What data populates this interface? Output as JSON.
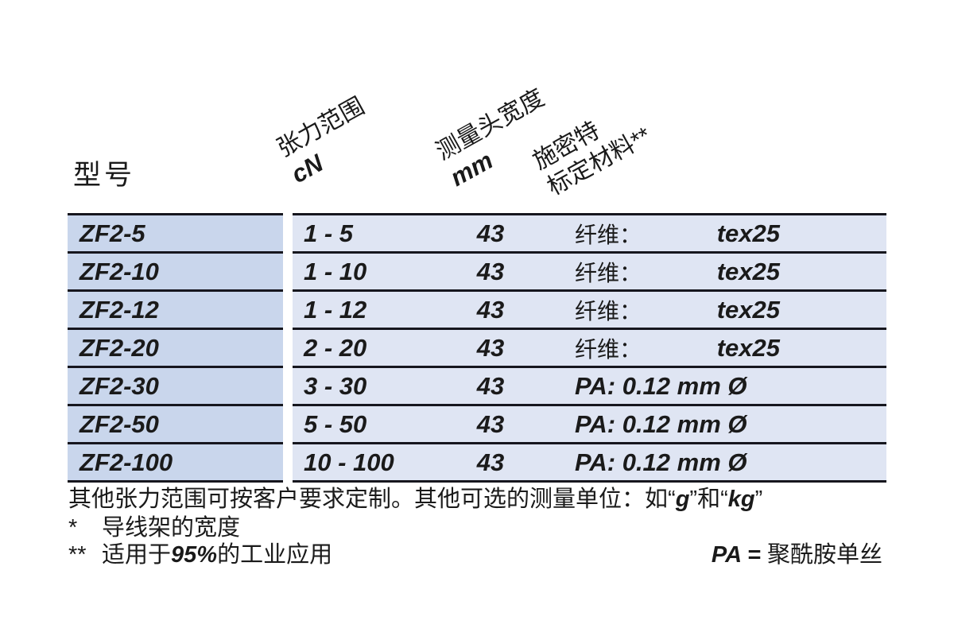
{
  "colors": {
    "model_column_bg": "#c9d6ec",
    "data_column_bg": "#dfe5f3",
    "rule_line": "#16161e",
    "text": "#1a1a1a",
    "background": "#ffffff"
  },
  "header": {
    "model_label": "型号",
    "tension": {
      "title": "张力范围",
      "unit": "cN"
    },
    "width": {
      "title": "测量头宽度",
      "unit": "mm"
    },
    "material": {
      "line1": "施密特",
      "line2": "标定材料**"
    }
  },
  "table": {
    "rows": [
      {
        "model": "ZF2-5",
        "range": "1 - 5",
        "head_width": "43",
        "material_label": "纤维：",
        "material_value": "tex25",
        "material_text": ""
      },
      {
        "model": "ZF2-10",
        "range": "1 - 10",
        "head_width": "43",
        "material_label": "纤维：",
        "material_value": "tex25",
        "material_text": ""
      },
      {
        "model": "ZF2-12",
        "range": "1 - 12",
        "head_width": "43",
        "material_label": "纤维：",
        "material_value": "tex25",
        "material_text": ""
      },
      {
        "model": "ZF2-20",
        "range": "2 - 20",
        "head_width": "43",
        "material_label": "纤维：",
        "material_value": "tex25",
        "material_text": ""
      },
      {
        "model": "ZF2-30",
        "range": "3 - 30",
        "head_width": "43",
        "material_label": "",
        "material_value": "",
        "material_text": "PA: 0.12 mm Ø"
      },
      {
        "model": "ZF2-50",
        "range": "5 - 50",
        "head_width": "43",
        "material_label": "",
        "material_value": "",
        "material_text": "PA: 0.12 mm Ø"
      },
      {
        "model": "ZF2-100",
        "range": "10 - 100",
        "head_width": "43",
        "material_label": "",
        "material_value": "",
        "material_text": "PA: 0.12 mm Ø"
      }
    ]
  },
  "footer": {
    "line1_prefix": "其他张力范围可按客户要求定制。其他可选的测量单位：如",
    "quote_open1": "“",
    "unit_g": "g",
    "quote_close1": "”",
    "conjunction": "和",
    "quote_open2": "“",
    "unit_kg": "kg",
    "quote_close2": "”",
    "star1": "*",
    "star1_text": "导线架的宽度",
    "star2": "**",
    "star2_prefix": "适用于",
    "star2_bold": "95%",
    "star2_suffix": "的工业应用",
    "pa_label": "PA = ",
    "pa_text": "聚酰胺单丝"
  }
}
